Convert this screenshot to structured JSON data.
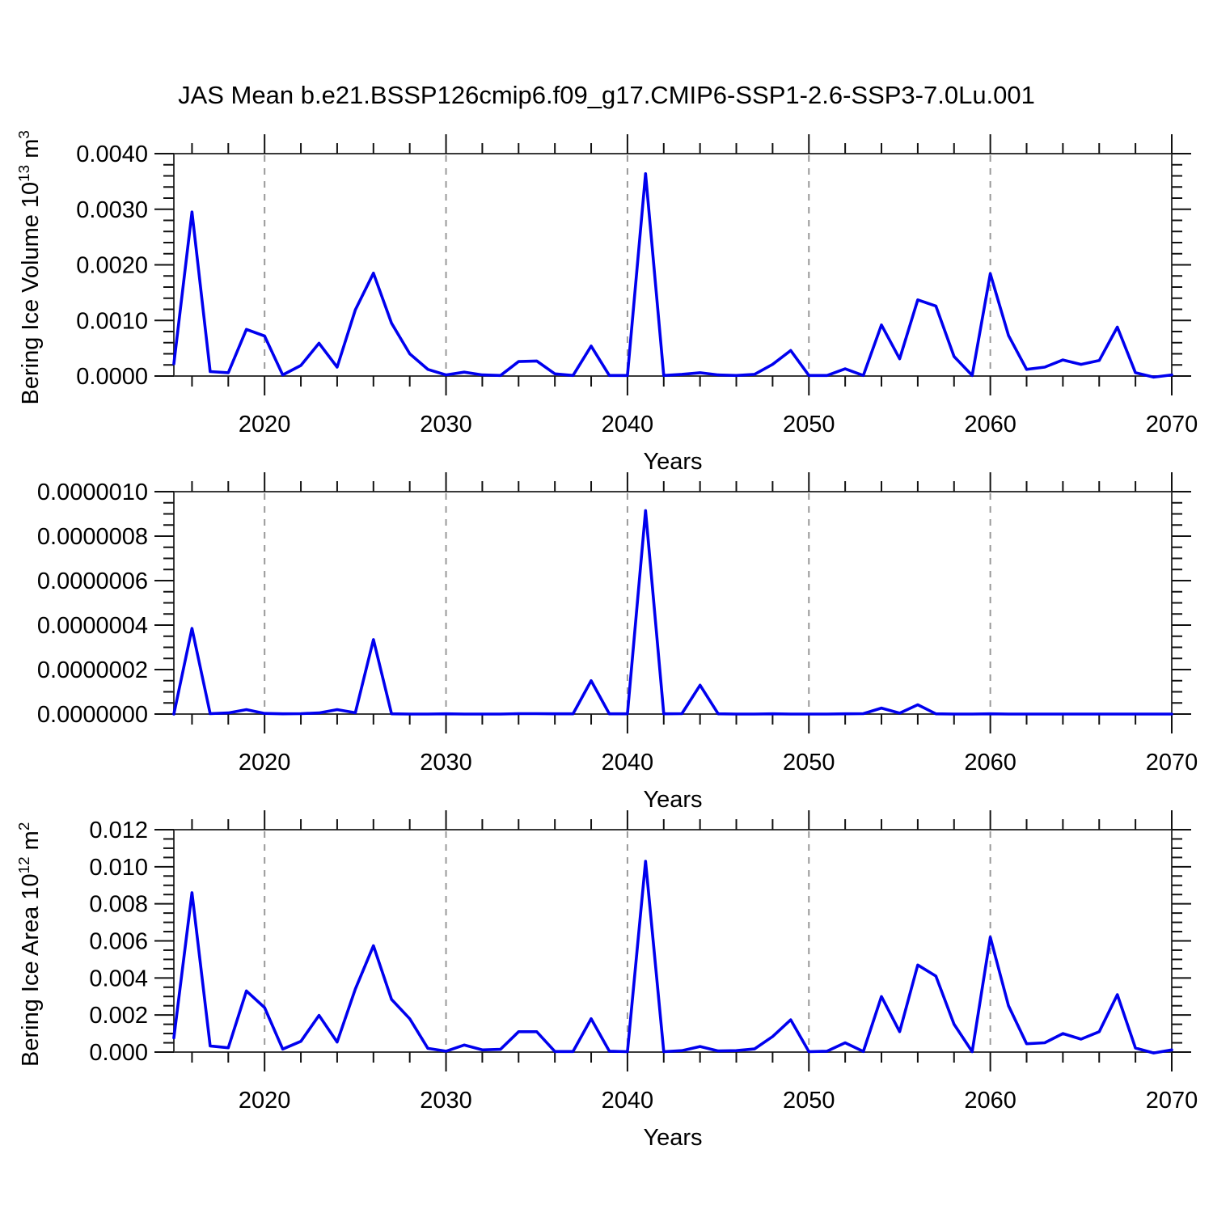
{
  "title": "JAS Mean b.e21.BSSP126cmip6.f09_g17.CMIP6-SSP1-2.6-SSP3-7.0Lu.001",
  "colors": {
    "line": "#0000EE",
    "box": "#3a3a3a",
    "tick": "#111111",
    "grid": "#999999",
    "text": "#000000"
  },
  "years": [
    2015,
    2016,
    2017,
    2018,
    2019,
    2020,
    2021,
    2022,
    2023,
    2024,
    2025,
    2026,
    2027,
    2028,
    2029,
    2030,
    2031,
    2032,
    2033,
    2034,
    2035,
    2036,
    2037,
    2038,
    2039,
    2040,
    2041,
    2042,
    2043,
    2044,
    2045,
    2046,
    2047,
    2048,
    2049,
    2050,
    2051,
    2052,
    2053,
    2054,
    2055,
    2056,
    2057,
    2058,
    2059,
    2060,
    2061,
    2062,
    2063,
    2064,
    2065,
    2066,
    2067,
    2068,
    2069,
    2070
  ],
  "x_axis": {
    "label": "Years",
    "range": [
      2015,
      2070
    ],
    "ticks": [
      2020,
      2030,
      2040,
      2050,
      2060,
      2070
    ],
    "tick_labels": [
      "2020",
      "2030",
      "2040",
      "2050",
      "2060",
      "2070"
    ],
    "grid": [
      2020,
      2030,
      2040,
      2050,
      2060
    ],
    "minor_step": 2
  },
  "chart_data": [
    {
      "type": "line",
      "name": "bering-ice-volume",
      "ylabel_parts": [
        {
          "t": "Bering Ice Volume 10"
        },
        {
          "t": "13",
          "sup": true
        },
        {
          "t": " m"
        },
        {
          "t": "3",
          "sup": true
        }
      ],
      "xlabel": "Years",
      "ylim": [
        0,
        0.004
      ],
      "ytick_values": [
        0,
        0.001,
        0.002,
        0.003,
        0.004
      ],
      "ytick_labels": [
        "0.0000",
        "0.0010",
        "0.0020",
        "0.0030",
        "0.0040"
      ],
      "y_minor_step": 0.0002,
      "grid_on": true,
      "legend": "none",
      "values": [
        0.00022,
        0.00295,
        8e-05,
        6e-05,
        0.00084,
        0.00072,
        2e-05,
        0.00019,
        0.00059,
        0.00016,
        0.00119,
        0.00185,
        0.00095,
        0.0004,
        0.00012,
        2e-05,
        7e-05,
        2e-05,
        1e-05,
        0.00026,
        0.00027,
        4e-05,
        1e-05,
        0.00054,
        1e-05,
        1e-05,
        0.00364,
        1e-05,
        3e-05,
        6e-05,
        2e-05,
        1e-05,
        3e-05,
        0.00021,
        0.00046,
        1e-05,
        1e-05,
        0.00013,
        1e-05,
        0.00092,
        0.00031,
        0.00137,
        0.00126,
        0.00035,
        1e-05,
        0.00184,
        0.00073,
        0.00012,
        0.00016,
        0.00029,
        0.00021,
        0.00028,
        0.00088,
        6e-05,
        -2e-05,
        2e-05
      ]
    },
    {
      "type": "line",
      "name": "unlabeled-middle-series",
      "ylabel_parts": [],
      "xlabel": "Years",
      "ylim": [
        0,
        1e-06
      ],
      "ytick_values": [
        0,
        2e-07,
        4e-07,
        6e-07,
        8e-07,
        1e-06
      ],
      "ytick_labels": [
        "0.0000000",
        "0.0000002",
        "0.0000004",
        "0.0000006",
        "0.0000008",
        "0.0000010"
      ],
      "y_minor_step": 5e-08,
      "grid_on": true,
      "legend": "none",
      "values": [
        0.0,
        3.85e-07,
        2e-09,
        5e-09,
        2e-08,
        3e-09,
        1e-09,
        2e-09,
        5e-09,
        2e-08,
        6e-09,
        3.35e-07,
        1e-09,
        0.0,
        0.0,
        1e-09,
        0.0,
        0.0,
        0.0,
        2e-09,
        2e-09,
        1e-09,
        1e-09,
        1.5e-07,
        1e-09,
        1e-09,
        9.15e-07,
        1e-09,
        2e-09,
        1.3e-07,
        1e-09,
        0.0,
        0.0,
        1e-09,
        0.0,
        0.0,
        0.0,
        1e-09,
        2e-09,
        2.7e-08,
        4e-09,
        4.2e-08,
        1e-09,
        0.0,
        0.0,
        1e-09,
        0.0,
        0.0,
        0.0,
        0.0,
        0.0,
        0.0,
        0.0,
        0.0,
        0.0,
        0.0
      ]
    },
    {
      "type": "line",
      "name": "bering-ice-area",
      "ylabel_parts": [
        {
          "t": "Bering Ice Area 10"
        },
        {
          "t": "12",
          "sup": true
        },
        {
          "t": " m"
        },
        {
          "t": "2",
          "sup": true
        }
      ],
      "xlabel": "Years",
      "ylim": [
        0,
        0.012
      ],
      "ytick_values": [
        0,
        0.002,
        0.004,
        0.006,
        0.008,
        0.01,
        0.012
      ],
      "ytick_labels": [
        "0.000",
        "0.002",
        "0.004",
        "0.006",
        "0.008",
        "0.010",
        "0.012"
      ],
      "y_minor_step": 0.0005,
      "grid_on": true,
      "legend": "none",
      "values": [
        0.00077,
        0.0086,
        0.00033,
        0.00023,
        0.0033,
        0.0024,
        0.00016,
        0.00058,
        0.00198,
        0.00054,
        0.0034,
        0.00574,
        0.00284,
        0.0018,
        0.0002,
        5e-05,
        0.00038,
        0.00012,
        0.00015,
        0.0011,
        0.0011,
        3e-05,
        3e-05,
        0.0018,
        5e-05,
        2e-05,
        0.0103,
        2e-05,
        8e-05,
        0.0003,
        6e-05,
        8e-05,
        0.00017,
        0.00084,
        0.00174,
        2e-05,
        5e-05,
        0.0005,
        3e-05,
        0.003,
        0.0011,
        0.0047,
        0.0041,
        0.0015,
        2e-05,
        0.0062,
        0.0025,
        0.00045,
        0.0005,
        0.001,
        0.0007,
        0.0011,
        0.0031,
        0.00022,
        -5e-05,
        0.00012
      ]
    }
  ]
}
